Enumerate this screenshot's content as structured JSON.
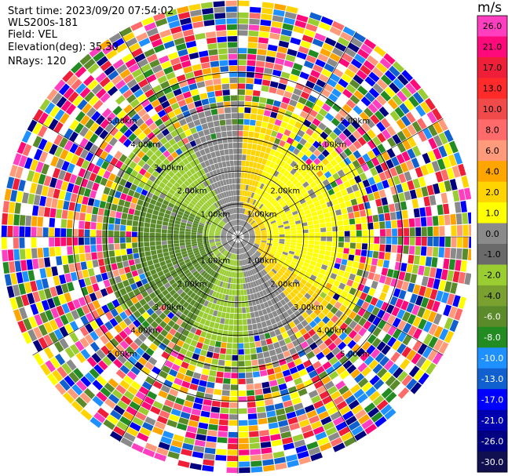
{
  "header": {
    "start_time": "Start time: 2023/09/20 07:54:02",
    "instrument": "WLS200s-181",
    "field": "Field: VEL",
    "elevation": "Elevation(deg): 35.30",
    "nrays": "NRays: 120"
  },
  "chart_data": {
    "type": "polar-ppi",
    "n_rays": 120,
    "range_rings": [
      {
        "label": "1.00km",
        "range_km": 1.0
      },
      {
        "label": "2.00km",
        "range_km": 2.0
      },
      {
        "label": "3.00km",
        "range_km": 3.0
      },
      {
        "label": "4.00km",
        "range_km": 4.0
      },
      {
        "label": "5.00km",
        "range_km": 5.0
      }
    ],
    "max_range_km": 5.0,
    "spokes_deg": [
      0,
      30,
      60,
      90,
      120,
      150,
      180,
      210,
      240,
      270,
      300,
      330
    ],
    "colorbar": {
      "unit": "m/s",
      "ticks": [
        "26.0",
        "21.0",
        "17.0",
        "13.0",
        "10.0",
        "8.0",
        "6.0",
        "4.0",
        "2.0",
        "1.0",
        "0.0",
        "-1.0",
        "-2.0",
        "-4.0",
        "-6.0",
        "-8.0",
        "-10.0",
        "-13.0",
        "-17.0",
        "-21.0",
        "-26.0",
        "-30.0"
      ],
      "colors": [
        "#ff3fbf",
        "#ff0a7a",
        "#ef1f3a",
        "#ff2a2a",
        "#f04a4a",
        "#ff6a6a",
        "#ff9a7a",
        "#ffa500",
        "#ffd400",
        "#ffff00",
        "#8a8a8a",
        "#6a6a6a",
        "#9acd32",
        "#7aa030",
        "#5a8a2a",
        "#228b22",
        "#1e90ff",
        "#1060d0",
        "#0000ff",
        "#0000b0",
        "#000080",
        "#101050"
      ]
    }
  }
}
